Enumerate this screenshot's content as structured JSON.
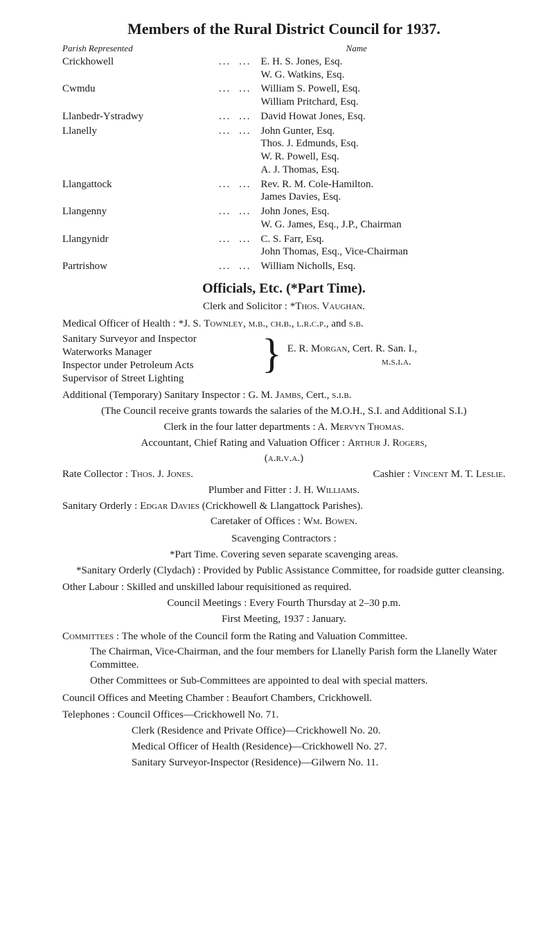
{
  "title": "Members of the Rural District Council for 1937.",
  "colhead_left": "Parish Represented",
  "colhead_right": "Name",
  "parishes": [
    {
      "name": "Crickhowell",
      "members": [
        "E. H. S. Jones, Esq.",
        "W. G. Watkins, Esq."
      ]
    },
    {
      "name": "Cwmdu",
      "members": [
        "William S. Powell, Esq.",
        "William Pritchard, Esq."
      ]
    },
    {
      "name": "Llanbedr-Ystradwy",
      "members": [
        "David Howat Jones, Esq."
      ]
    },
    {
      "name": "Llanelly",
      "members": [
        "John Gunter, Esq.",
        "Thos. J. Edmunds, Esq.",
        "W. R. Powell, Esq.",
        "A. J. Thomas, Esq."
      ]
    },
    {
      "name": "Llangattock",
      "members": [
        "Rev. R. M. Cole-Hamilton.",
        "James Davies, Esq."
      ]
    },
    {
      "name": "Llangenny",
      "members": [
        "John Jones, Esq.",
        "W. G. James, Esq., J.P., Chairman"
      ]
    },
    {
      "name": "Llangynidr",
      "members": [
        "C. S. Farr, Esq.",
        "John Thomas, Esq., Vice-Chairman"
      ]
    },
    {
      "name": "Partrishow",
      "members": [
        "William Nicholls, Esq."
      ]
    }
  ],
  "officials_head": "Officials, Etc. (*Part Time).",
  "clerk_label": "Clerk and Solicitor : ",
  "clerk_name": "*Thos. Vaughan.",
  "moh_line": "Medical Officer of Health : *J. S. Townley, m.b., ch.b., l.r.c.p., and s.b.",
  "brace_left": [
    "Sanitary Surveyor and Inspector",
    "Waterworks Manager",
    "Inspector under Petroleum Acts",
    "Supervisor of Street Lighting"
  ],
  "brace_right": [
    "E. R. Morgan, Cert. R. San. I.,",
    "m.s.i.a."
  ],
  "add_insp": "Additional (Temporary) Sanitary Inspector : G. M. Jambs, Cert., s.i.b.",
  "grants": "(The Council receive grants towards the salaries of the M.O.H., S.I. and Additional S.I.)",
  "clerk4": "Clerk in the four latter departments : A. Mervyn Thomas.",
  "accountant": "Accountant, Chief Rating and Valuation Officer : Arthur J. Rogers,",
  "accountant2": "(a.r.v.a.)",
  "rate_cashier": "Rate Collector : Thos. J. Jones.      Cashier : Vincent M. T. Leslie.",
  "plumber": "Plumber and Fitter : J. H. Williams.",
  "orderly": "Sanitary Orderly : Edgar Davies (Crickhowell & Llangattock Parishes).",
  "caretaker": "Caretaker of Offices : Wm. Bowen.",
  "scav_head": "Scavenging Contractors :",
  "scav_part": "*Part Time.  Covering seven separate scavenging areas.",
  "scav_san": "*Sanitary Orderly (Clydach) : Provided by Public Assistance Committee, for roadside gutter cleansing.",
  "other_labour": "Other Labour : Skilled and unskilled labour requisitioned as required.",
  "meetings": "Council Meetings : Every Fourth Thursday at 2–30 p.m.",
  "first_meeting": "First Meeting, 1937 : January.",
  "committees_head": "Committees : ",
  "committees_body": "The whole of the Council form the Rating and Valuation Committee.",
  "committees_p2": "The Chairman, Vice-Chairman, and the four members for Llanelly Parish form the Llanelly Water Committee.",
  "committees_p3": "Other Committees or Sub-Committees are appointed to deal with special matters.",
  "offices": "Council Offices and Meeting Chamber : Beaufort Chambers, Crickhowell.",
  "tel_label": "Telephones : ",
  "tel_lines": [
    "Council Offices—Crickhowell No. 71.",
    "Clerk (Residence and Private Office)—Crickhowell No. 20.",
    "Medical Officer of Health (Residence)—Crickhowell No. 27.",
    "Sanitary Surveyor-Inspector (Residence)—Gilwern No. 11."
  ]
}
